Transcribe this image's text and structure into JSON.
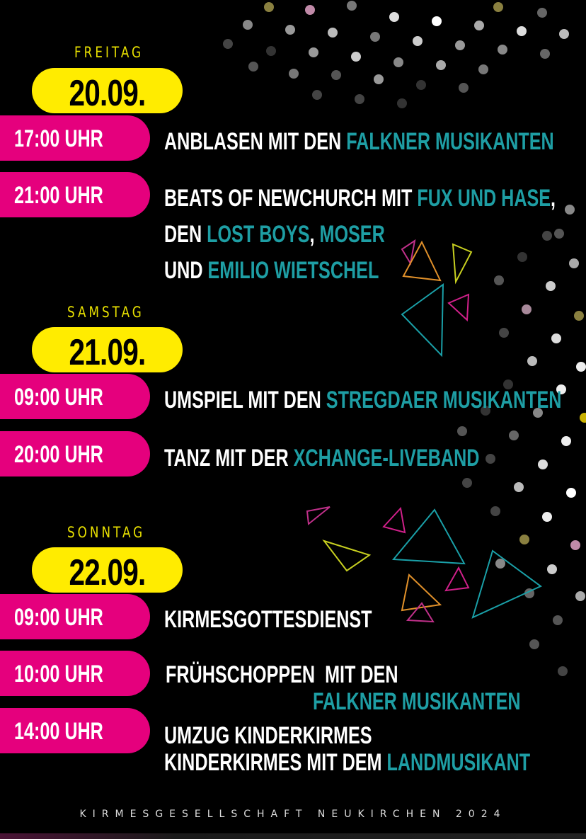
{
  "colors": {
    "background": "#000000",
    "date_pill": "#ffec00",
    "time_pill": "#e5007d",
    "accent_teal": "#1e9ea4",
    "day_label": "#e8e000"
  },
  "days": [
    {
      "label": "FREITAG",
      "date": "20.09.",
      "events": [
        {
          "time": "17:00 UHR",
          "lines": [
            [
              {
                "text": "ANBLASEN MIT DEN "
              },
              {
                "text": "FALKNER MUSIKANTEN",
                "accent": true
              }
            ]
          ]
        },
        {
          "time": "21:00 UHR",
          "lines": [
            [
              {
                "text": "BEATS OF NEWCHURCH MIT "
              },
              {
                "text": "FUX UND HASE",
                "accent": true
              },
              {
                "text": ","
              }
            ],
            [
              {
                "text": "DEN "
              },
              {
                "text": "LOST BOYS",
                "accent": true
              },
              {
                "text": ", "
              },
              {
                "text": "MOSER",
                "accent": true
              }
            ],
            [
              {
                "text": "UND "
              },
              {
                "text": "EMILIO WIETSCHEL",
                "accent": true
              }
            ]
          ]
        }
      ]
    },
    {
      "label": "SAMSTAG",
      "date": "21.09.",
      "events": [
        {
          "time": "09:00 UHR",
          "lines": [
            [
              {
                "text": "UMSPIEL MIT DEN "
              },
              {
                "text": "STREGDAER MUSIKANTEN",
                "accent": true
              }
            ]
          ]
        },
        {
          "time": "20:00 UHR",
          "lines": [
            [
              {
                "text": "TANZ MIT DER "
              },
              {
                "text": "XCHANGE-LIVEBAND",
                "accent": true
              }
            ]
          ]
        }
      ]
    },
    {
      "label": "SONNTAG",
      "date": "22.09.",
      "events": [
        {
          "time": "09:00 UHR",
          "lines": [
            [
              {
                "text": "KIRMESGOTTESDIENST"
              }
            ]
          ]
        },
        {
          "time": "10:00 UHR",
          "lines": [
            [
              {
                "text": "FRÜHSCHOPPEN  MIT DEN"
              }
            ],
            [
              {
                "text": "FALKNER MUSIKANTEN",
                "accent": true
              }
            ]
          ]
        },
        {
          "time": "14:00 UHR",
          "lines": [
            [
              {
                "text": "UMZUG KINDERKIRMES"
              }
            ],
            [
              {
                "text": "KINDERKIRMES MIT DEM "
              },
              {
                "text": "LANDMUSIKANT",
                "accent": true
              }
            ]
          ]
        }
      ]
    }
  ],
  "footer": "KIRMESGESELLSCHAFT NEUKIRCHEN 2024"
}
